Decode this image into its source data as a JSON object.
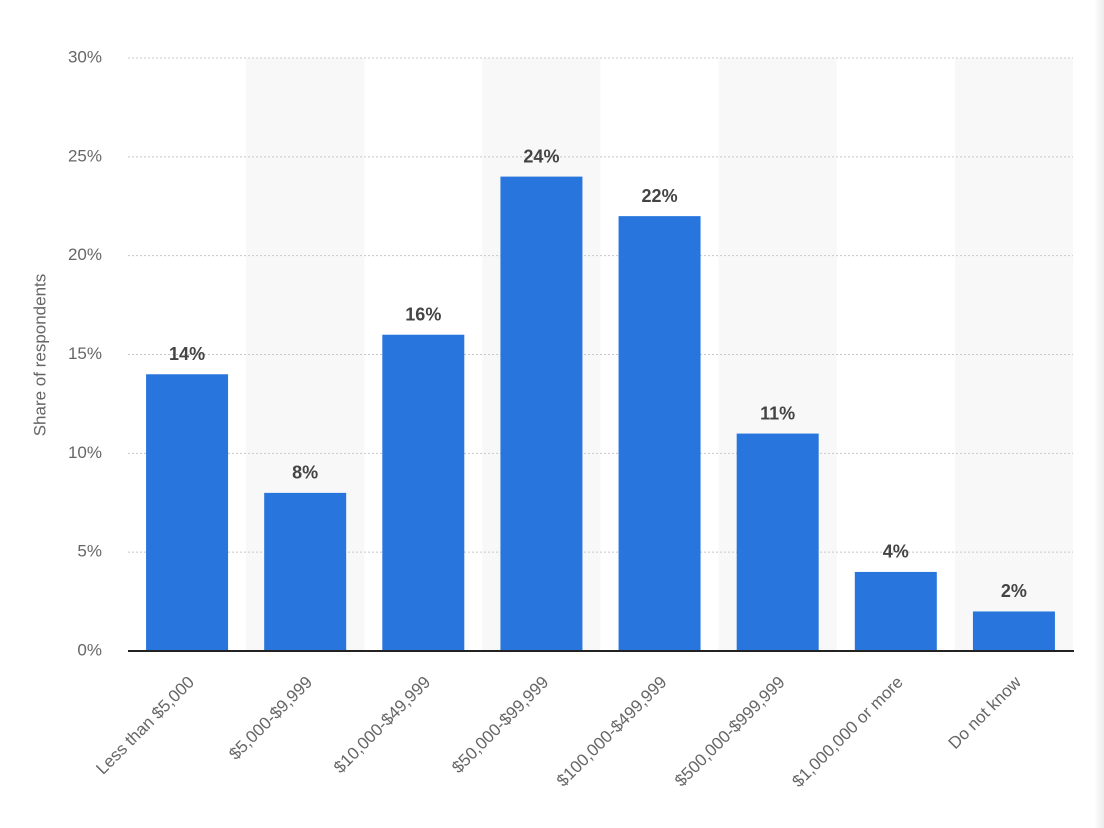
{
  "chart_data": {
    "type": "bar",
    "y_axis_label": "Share of respondents",
    "categories": [
      "Less than $5,000",
      "$5,000-$9,999",
      "$10,000-$49,999",
      "$50,000-$99,999",
      "$100,000-$499,999",
      "$500,000-$999,999",
      "$1,000,000 or more",
      "Do not know"
    ],
    "values": [
      14,
      8,
      16,
      24,
      22,
      11,
      4,
      2
    ],
    "value_labels": [
      "14%",
      "8%",
      "16%",
      "24%",
      "22%",
      "11%",
      "4%",
      "2%"
    ],
    "color": "#2876dd",
    "ylim": [
      0,
      30
    ],
    "yticks": [
      {
        "value": 0,
        "label": "0%"
      },
      {
        "value": 5,
        "label": "5%"
      },
      {
        "value": 10,
        "label": "10%"
      },
      {
        "value": 15,
        "label": "15%"
      },
      {
        "value": 20,
        "label": "20%"
      },
      {
        "value": 25,
        "label": "25%"
      },
      {
        "value": 30,
        "label": "30%"
      }
    ],
    "grid": true
  }
}
